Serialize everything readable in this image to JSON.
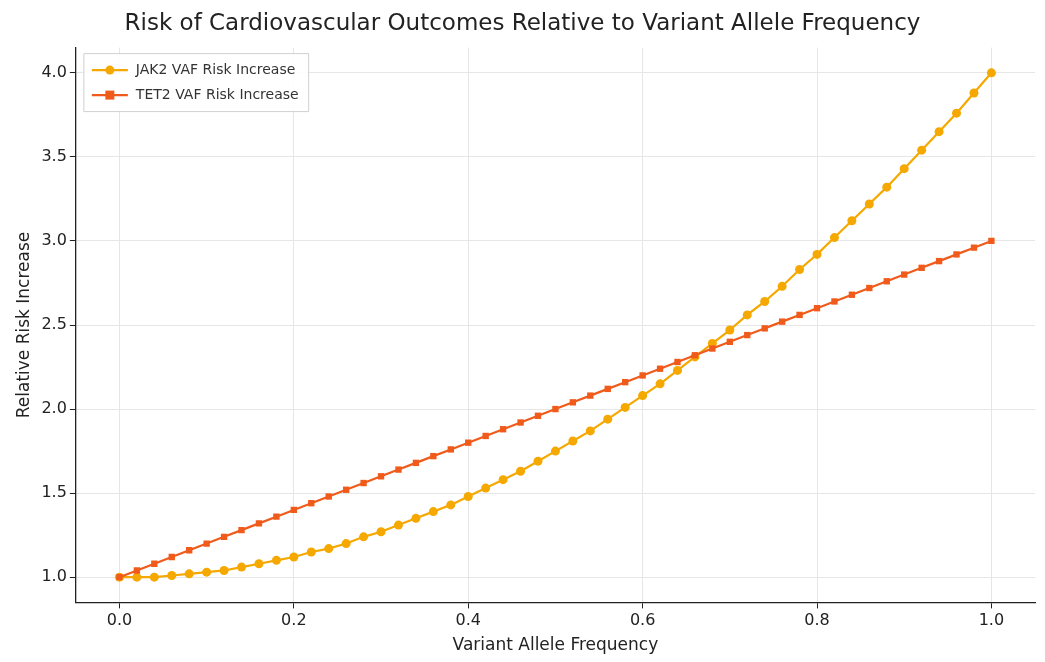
{
  "chart_data": {
    "type": "line",
    "title": "Risk of Cardiovascular Outcomes Relative to Variant Allele Frequency",
    "xlabel": "Variant Allele Frequency",
    "ylabel": "Relative Risk Increase",
    "x": [
      0,
      0.02,
      0.04,
      0.06,
      0.08,
      0.1,
      0.12,
      0.14,
      0.16,
      0.18,
      0.2,
      0.22,
      0.24,
      0.26,
      0.28,
      0.3,
      0.32,
      0.34,
      0.36,
      0.38,
      0.4,
      0.42,
      0.44,
      0.46,
      0.48,
      0.5,
      0.52,
      0.54,
      0.56,
      0.58,
      0.6,
      0.62,
      0.64,
      0.66,
      0.68,
      0.7,
      0.72,
      0.74,
      0.76,
      0.78,
      0.8,
      0.82,
      0.84,
      0.86,
      0.88,
      0.9,
      0.92,
      0.94,
      0.96,
      0.98,
      1
    ],
    "series": [
      {
        "name": "JAK2 VAF Risk Increase",
        "color": "#f5a800",
        "marker": "circle",
        "values": [
          1.0,
          1.0,
          1.0,
          1.01,
          1.02,
          1.03,
          1.04,
          1.06,
          1.08,
          1.1,
          1.12,
          1.15,
          1.17,
          1.2,
          1.24,
          1.27,
          1.31,
          1.35,
          1.39,
          1.43,
          1.48,
          1.53,
          1.58,
          1.63,
          1.69,
          1.75,
          1.81,
          1.87,
          1.94,
          2.01,
          2.08,
          2.15,
          2.23,
          2.31,
          2.39,
          2.47,
          2.56,
          2.64,
          2.73,
          2.83,
          2.92,
          3.02,
          3.12,
          3.22,
          3.32,
          3.43,
          3.54,
          3.65,
          3.76,
          3.88,
          4.0
        ]
      },
      {
        "name": "TET2 VAF Risk Increase",
        "color": "#f05a1a",
        "marker": "square",
        "values": [
          1.0,
          1.04,
          1.08,
          1.12,
          1.16,
          1.2,
          1.24,
          1.28,
          1.32,
          1.36,
          1.4,
          1.44,
          1.48,
          1.52,
          1.56,
          1.6,
          1.64,
          1.68,
          1.72,
          1.76,
          1.8,
          1.84,
          1.88,
          1.92,
          1.96,
          2.0,
          2.04,
          2.08,
          2.12,
          2.16,
          2.2,
          2.24,
          2.28,
          2.32,
          2.36,
          2.4,
          2.44,
          2.48,
          2.52,
          2.56,
          2.6,
          2.64,
          2.68,
          2.72,
          2.76,
          2.8,
          2.84,
          2.88,
          2.92,
          2.96,
          3.0
        ]
      }
    ],
    "xlim": [
      -0.05,
      1.05
    ],
    "xticks": [
      {
        "value": 0,
        "label": "0.0"
      },
      {
        "value": 0.2,
        "label": "0.2"
      },
      {
        "value": 0.4,
        "label": "0.4"
      },
      {
        "value": 0.6,
        "label": "0.6"
      },
      {
        "value": 0.8,
        "label": "0.8"
      },
      {
        "value": 1,
        "label": "1.0"
      }
    ],
    "ylim": [
      0.85,
      4.15
    ],
    "yticks": [
      {
        "value": 1,
        "label": "1.0"
      },
      {
        "value": 1.5,
        "label": "1.5"
      },
      {
        "value": 2,
        "label": "2.0"
      },
      {
        "value": 2.5,
        "label": "2.5"
      },
      {
        "value": 3,
        "label": "3.0"
      },
      {
        "value": 3.5,
        "label": "3.5"
      },
      {
        "value": 4,
        "label": "4.0"
      }
    ],
    "grid": true,
    "legend": "top left",
    "line_style": "solid"
  }
}
